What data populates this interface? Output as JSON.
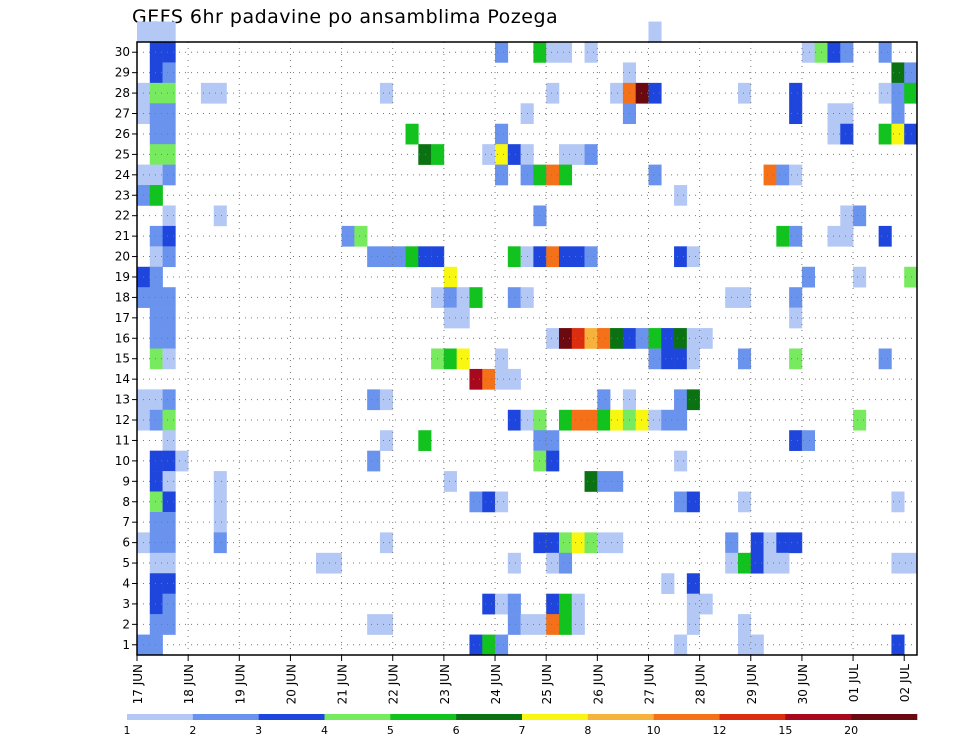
{
  "title": "GEFS 6hr padavine po ansamblima Pozega",
  "chart_data": {
    "type": "heatmap",
    "title": "GEFS 6hr padavine po ansamblima Pozega",
    "xlabel": "",
    "ylabel": "",
    "x_tick_labels": [
      "17 JUN",
      "18 JUN",
      "19 JUN",
      "20 JUN",
      "21 JUN",
      "22 JUN",
      "23 JUN",
      "24 JUN",
      "25 JUN",
      "26 JUN",
      "27 JUN",
      "28 JUN",
      "29 JUN",
      "30 JUN",
      "01 JUL",
      "02 JUL"
    ],
    "y_tick_labels": [
      "1",
      "2",
      "3",
      "4",
      "5",
      "6",
      "7",
      "8",
      "9",
      "10",
      "11",
      "12",
      "13",
      "14",
      "15",
      "16",
      "17",
      "18",
      "19",
      "20",
      "21",
      "22",
      "23",
      "24",
      "25",
      "26",
      "27",
      "28",
      "29",
      "30"
    ],
    "y_range": [
      0,
      30
    ],
    "time_steps_6h": 61,
    "grid": true,
    "colorbar": {
      "labels": [
        "1",
        "2",
        "3",
        "4",
        "5",
        "6",
        "7",
        "8",
        "10",
        "12",
        "15",
        "20"
      ],
      "colors": [
        "#b4c8f5",
        "#6a93ee",
        "#1f46dc",
        "#78ea5f",
        "#12c21e",
        "#0a7212",
        "#f7f711",
        "#f7b23c",
        "#f4711a",
        "#dc2e0e",
        "#a8081e",
        "#6a0a10"
      ],
      "placement": "bottom"
    },
    "cells": [
      [
        30,
        0,
        1
      ],
      [
        30,
        1,
        1
      ],
      [
        30,
        2,
        1
      ],
      [
        30,
        40,
        1
      ],
      [
        29,
        1,
        3
      ],
      [
        29,
        2,
        3
      ],
      [
        29,
        28,
        2
      ],
      [
        29,
        31,
        5
      ],
      [
        29,
        32,
        1
      ],
      [
        29,
        33,
        1
      ],
      [
        29,
        35,
        1
      ],
      [
        29,
        52,
        1
      ],
      [
        29,
        53,
        4
      ],
      [
        29,
        54,
        3
      ],
      [
        29,
        55,
        2
      ],
      [
        29,
        58,
        2
      ],
      [
        28,
        1,
        3
      ],
      [
        28,
        2,
        2
      ],
      [
        28,
        38,
        1
      ],
      [
        28,
        59,
        6
      ],
      [
        28,
        60,
        2
      ],
      [
        27,
        0,
        1
      ],
      [
        27,
        1,
        4
      ],
      [
        27,
        2,
        4
      ],
      [
        27,
        5,
        1
      ],
      [
        27,
        6,
        1
      ],
      [
        27,
        19,
        1
      ],
      [
        27,
        32,
        1
      ],
      [
        27,
        37,
        1
      ],
      [
        27,
        38,
        9
      ],
      [
        27,
        39,
        12
      ],
      [
        27,
        40,
        3
      ],
      [
        27,
        47,
        1
      ],
      [
        27,
        51,
        3
      ],
      [
        27,
        58,
        1
      ],
      [
        27,
        59,
        2
      ],
      [
        27,
        60,
        5
      ],
      [
        26,
        0,
        1
      ],
      [
        26,
        1,
        2
      ],
      [
        26,
        2,
        2
      ],
      [
        26,
        30,
        1
      ],
      [
        26,
        38,
        2
      ],
      [
        26,
        51,
        3
      ],
      [
        26,
        54,
        1
      ],
      [
        26,
        55,
        1
      ],
      [
        26,
        59,
        2
      ],
      [
        25,
        1,
        2
      ],
      [
        25,
        2,
        2
      ],
      [
        25,
        21,
        5
      ],
      [
        25,
        28,
        2
      ],
      [
        25,
        54,
        1
      ],
      [
        25,
        55,
        3
      ],
      [
        25,
        58,
        5
      ],
      [
        25,
        59,
        7
      ],
      [
        25,
        60,
        3
      ],
      [
        24,
        1,
        4
      ],
      [
        24,
        2,
        4
      ],
      [
        24,
        22,
        6
      ],
      [
        24,
        23,
        5
      ],
      [
        24,
        27,
        1
      ],
      [
        24,
        28,
        7
      ],
      [
        24,
        29,
        3
      ],
      [
        24,
        30,
        1
      ],
      [
        24,
        33,
        1
      ],
      [
        24,
        34,
        1
      ],
      [
        24,
        35,
        2
      ],
      [
        23,
        0,
        1
      ],
      [
        23,
        1,
        1
      ],
      [
        23,
        2,
        2
      ],
      [
        23,
        28,
        2
      ],
      [
        23,
        30,
        2
      ],
      [
        23,
        31,
        5
      ],
      [
        23,
        32,
        9
      ],
      [
        23,
        33,
        5
      ],
      [
        23,
        40,
        2
      ],
      [
        23,
        49,
        9
      ],
      [
        23,
        50,
        2
      ],
      [
        23,
        51,
        1
      ],
      [
        22,
        0,
        2
      ],
      [
        22,
        1,
        5
      ],
      [
        22,
        42,
        1
      ],
      [
        21,
        2,
        1
      ],
      [
        21,
        6,
        1
      ],
      [
        21,
        31,
        2
      ],
      [
        21,
        55,
        1
      ],
      [
        21,
        56,
        2
      ],
      [
        20,
        1,
        2
      ],
      [
        20,
        2,
        3
      ],
      [
        20,
        16,
        2
      ],
      [
        20,
        17,
        4
      ],
      [
        20,
        50,
        5
      ],
      [
        20,
        51,
        2
      ],
      [
        20,
        54,
        1
      ],
      [
        20,
        55,
        1
      ],
      [
        20,
        58,
        3
      ],
      [
        19,
        1,
        1
      ],
      [
        19,
        2,
        2
      ],
      [
        19,
        18,
        2
      ],
      [
        19,
        19,
        2
      ],
      [
        19,
        20,
        2
      ],
      [
        19,
        21,
        5
      ],
      [
        19,
        22,
        3
      ],
      [
        19,
        23,
        3
      ],
      [
        19,
        29,
        5
      ],
      [
        19,
        30,
        1
      ],
      [
        19,
        31,
        3
      ],
      [
        19,
        32,
        9
      ],
      [
        19,
        33,
        3
      ],
      [
        19,
        34,
        3
      ],
      [
        19,
        35,
        2
      ],
      [
        19,
        42,
        3
      ],
      [
        19,
        43,
        1
      ],
      [
        18,
        0,
        3
      ],
      [
        18,
        1,
        2
      ],
      [
        18,
        24,
        7
      ],
      [
        18,
        52,
        2
      ],
      [
        18,
        56,
        1
      ],
      [
        18,
        60,
        4
      ],
      [
        17,
        0,
        2
      ],
      [
        17,
        1,
        2
      ],
      [
        17,
        2,
        2
      ],
      [
        17,
        23,
        1
      ],
      [
        17,
        24,
        2
      ],
      [
        17,
        25,
        1
      ],
      [
        17,
        26,
        5
      ],
      [
        17,
        29,
        2
      ],
      [
        17,
        30,
        1
      ],
      [
        17,
        46,
        1
      ],
      [
        17,
        47,
        1
      ],
      [
        17,
        51,
        2
      ],
      [
        16,
        1,
        2
      ],
      [
        16,
        2,
        2
      ],
      [
        16,
        24,
        1
      ],
      [
        16,
        25,
        1
      ],
      [
        16,
        51,
        1
      ],
      [
        15,
        1,
        2
      ],
      [
        15,
        2,
        2
      ],
      [
        15,
        32,
        1
      ],
      [
        15,
        33,
        12
      ],
      [
        15,
        34,
        10
      ],
      [
        15,
        35,
        8
      ],
      [
        15,
        36,
        9
      ],
      [
        15,
        37,
        6
      ],
      [
        15,
        38,
        3
      ],
      [
        15,
        39,
        2
      ],
      [
        15,
        40,
        5
      ],
      [
        15,
        41,
        3
      ],
      [
        15,
        42,
        6
      ],
      [
        15,
        43,
        1
      ],
      [
        15,
        44,
        1
      ],
      [
        14,
        1,
        4
      ],
      [
        14,
        2,
        1
      ],
      [
        14,
        23,
        4
      ],
      [
        14,
        24,
        5
      ],
      [
        14,
        25,
        7
      ],
      [
        14,
        28,
        1
      ],
      [
        14,
        40,
        2
      ],
      [
        14,
        41,
        3
      ],
      [
        14,
        42,
        3
      ],
      [
        14,
        43,
        1
      ],
      [
        14,
        47,
        2
      ],
      [
        14,
        51,
        4
      ],
      [
        14,
        58,
        2
      ],
      [
        13,
        26,
        11
      ],
      [
        13,
        27,
        9
      ],
      [
        13,
        28,
        1
      ],
      [
        13,
        29,
        1
      ],
      [
        12,
        1,
        1
      ],
      [
        12,
        38,
        1
      ],
      [
        12,
        0,
        1
      ],
      [
        12,
        2,
        2
      ],
      [
        12,
        18,
        2
      ],
      [
        12,
        19,
        1
      ],
      [
        12,
        36,
        2
      ],
      [
        12,
        42,
        2
      ],
      [
        12,
        43,
        6
      ],
      [
        11,
        0,
        1
      ],
      [
        11,
        1,
        2
      ],
      [
        11,
        2,
        4
      ],
      [
        11,
        29,
        3
      ],
      [
        11,
        30,
        1
      ],
      [
        11,
        31,
        4
      ],
      [
        11,
        33,
        5
      ],
      [
        11,
        34,
        9
      ],
      [
        11,
        35,
        9
      ],
      [
        11,
        36,
        5
      ],
      [
        11,
        37,
        7
      ],
      [
        11,
        38,
        4
      ],
      [
        11,
        39,
        7
      ],
      [
        11,
        40,
        1
      ],
      [
        11,
        41,
        2
      ],
      [
        11,
        42,
        2
      ],
      [
        11,
        56,
        4
      ],
      [
        10,
        2,
        1
      ],
      [
        10,
        19,
        1
      ],
      [
        10,
        22,
        5
      ],
      [
        10,
        31,
        2
      ],
      [
        10,
        32,
        2
      ],
      [
        10,
        51,
        3
      ],
      [
        10,
        52,
        2
      ],
      [
        9,
        1,
        3
      ],
      [
        9,
        2,
        3
      ],
      [
        9,
        3,
        1
      ],
      [
        9,
        18,
        2
      ],
      [
        9,
        31,
        4
      ],
      [
        9,
        32,
        3
      ],
      [
        9,
        42,
        1
      ],
      [
        8,
        1,
        3
      ],
      [
        8,
        2,
        1
      ],
      [
        8,
        6,
        1
      ],
      [
        8,
        24,
        1
      ],
      [
        8,
        35,
        6
      ],
      [
        8,
        36,
        2
      ],
      [
        8,
        37,
        2
      ],
      [
        7,
        1,
        4
      ],
      [
        7,
        2,
        3
      ],
      [
        7,
        6,
        1
      ],
      [
        7,
        26,
        2
      ],
      [
        7,
        27,
        3
      ],
      [
        7,
        28,
        1
      ],
      [
        7,
        42,
        2
      ],
      [
        7,
        43,
        3
      ],
      [
        7,
        47,
        1
      ],
      [
        7,
        59,
        1
      ],
      [
        6,
        1,
        2
      ],
      [
        6,
        2,
        2
      ],
      [
        6,
        6,
        1
      ],
      [
        5,
        0,
        1
      ],
      [
        5,
        1,
        2
      ],
      [
        5,
        2,
        2
      ],
      [
        5,
        6,
        2
      ],
      [
        5,
        19,
        1
      ],
      [
        5,
        31,
        3
      ],
      [
        5,
        32,
        3
      ],
      [
        5,
        33,
        4
      ],
      [
        5,
        34,
        7
      ],
      [
        5,
        35,
        4
      ],
      [
        5,
        36,
        1
      ],
      [
        5,
        37,
        1
      ],
      [
        5,
        46,
        2
      ],
      [
        5,
        48,
        3
      ],
      [
        5,
        49,
        1
      ],
      [
        5,
        50,
        3
      ],
      [
        5,
        51,
        3
      ],
      [
        4,
        1,
        1
      ],
      [
        4,
        2,
        1
      ],
      [
        4,
        14,
        1
      ],
      [
        4,
        15,
        1
      ],
      [
        4,
        29,
        1
      ],
      [
        4,
        32,
        1
      ],
      [
        4,
        33,
        2
      ],
      [
        4,
        46,
        1
      ],
      [
        4,
        47,
        5
      ],
      [
        4,
        48,
        3
      ],
      [
        4,
        49,
        1
      ],
      [
        4,
        50,
        1
      ],
      [
        4,
        59,
        1
      ],
      [
        4,
        60,
        1
      ],
      [
        3,
        1,
        3
      ],
      [
        3,
        2,
        3
      ],
      [
        3,
        41,
        1
      ],
      [
        3,
        43,
        3
      ],
      [
        2,
        1,
        3
      ],
      [
        2,
        2,
        2
      ],
      [
        2,
        27,
        3
      ],
      [
        2,
        28,
        1
      ],
      [
        2,
        29,
        2
      ],
      [
        2,
        32,
        3
      ],
      [
        2,
        33,
        5
      ],
      [
        2,
        34,
        1
      ],
      [
        2,
        43,
        1
      ],
      [
        2,
        44,
        1
      ],
      [
        1,
        1,
        2
      ],
      [
        1,
        2,
        2
      ],
      [
        1,
        18,
        1
      ],
      [
        1,
        19,
        1
      ],
      [
        1,
        29,
        2
      ],
      [
        1,
        30,
        1
      ],
      [
        1,
        31,
        1
      ],
      [
        1,
        32,
        9
      ],
      [
        1,
        33,
        5
      ],
      [
        1,
        34,
        1
      ],
      [
        1,
        43,
        1
      ],
      [
        1,
        47,
        1
      ],
      [
        0,
        0,
        2
      ],
      [
        0,
        1,
        2
      ],
      [
        0,
        26,
        3
      ],
      [
        0,
        27,
        5
      ],
      [
        0,
        28,
        2
      ],
      [
        0,
        42,
        1
      ],
      [
        0,
        47,
        1
      ],
      [
        0,
        48,
        1
      ],
      [
        0,
        59,
        3
      ]
    ]
  }
}
